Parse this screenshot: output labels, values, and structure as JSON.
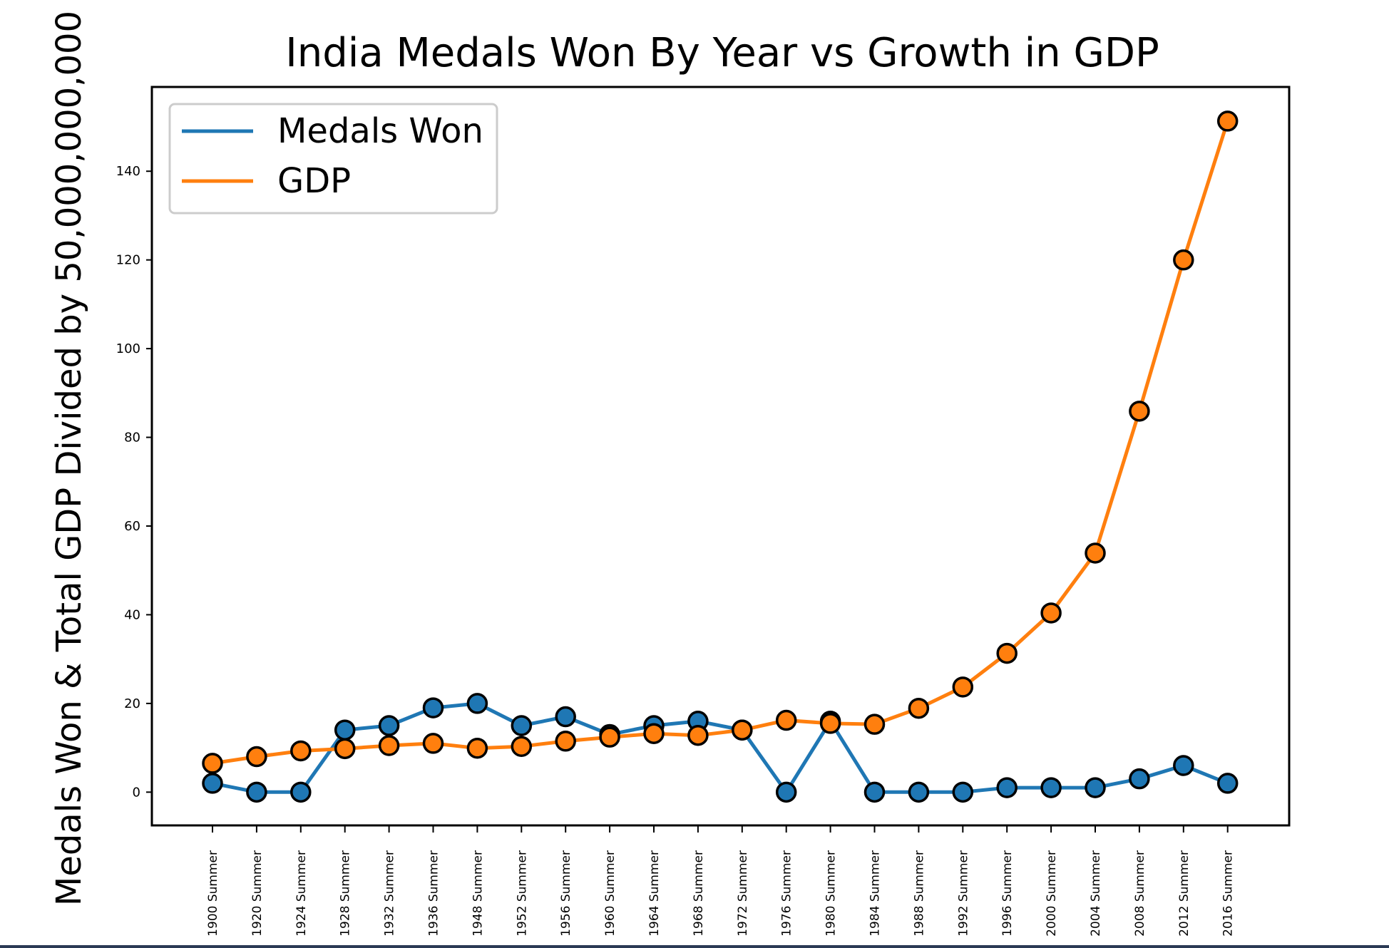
{
  "chart_data": {
    "type": "line",
    "title": "India Medals Won By Year vs Growth in GDP",
    "xlabel": "",
    "ylabel": "Medals Won & Total GDP Divided by 50,000,000,000",
    "categories": [
      "1900 Summer",
      "1920 Summer",
      "1924 Summer",
      "1928 Summer",
      "1932 Summer",
      "1936 Summer",
      "1948 Summer",
      "1952 Summer",
      "1956 Summer",
      "1960 Summer",
      "1964 Summer",
      "1968 Summer",
      "1972 Summer",
      "1976 Summer",
      "1980 Summer",
      "1984 Summer",
      "1988 Summer",
      "1992 Summer",
      "1996 Summer",
      "2000 Summer",
      "2004 Summer",
      "2008 Summer",
      "2012 Summer",
      "2016 Summer"
    ],
    "yticks": [
      "0",
      "20",
      "40",
      "60",
      "80",
      "100",
      "120",
      "140"
    ],
    "ylim": [
      -7.5,
      159
    ],
    "grid": false,
    "legend_position": "top-left",
    "series": [
      {
        "name": "Medals Won",
        "color": "#1f77b4",
        "values": [
          2,
          0,
          0,
          14,
          15,
          19,
          20,
          15,
          17,
          13,
          15,
          16,
          14,
          0,
          16,
          0,
          0,
          0,
          1,
          1,
          1,
          3,
          6,
          2
        ]
      },
      {
        "name": "GDP",
        "color": "#ff7f0e",
        "values": [
          6.5,
          8,
          9.3,
          9.8,
          10.5,
          11,
          9.9,
          10.3,
          11.5,
          12.4,
          13.2,
          12.8,
          14,
          16.2,
          15.5,
          15.3,
          18.9,
          23.7,
          31.3,
          40.4,
          53.9,
          85.9,
          120,
          151.3
        ]
      }
    ]
  }
}
